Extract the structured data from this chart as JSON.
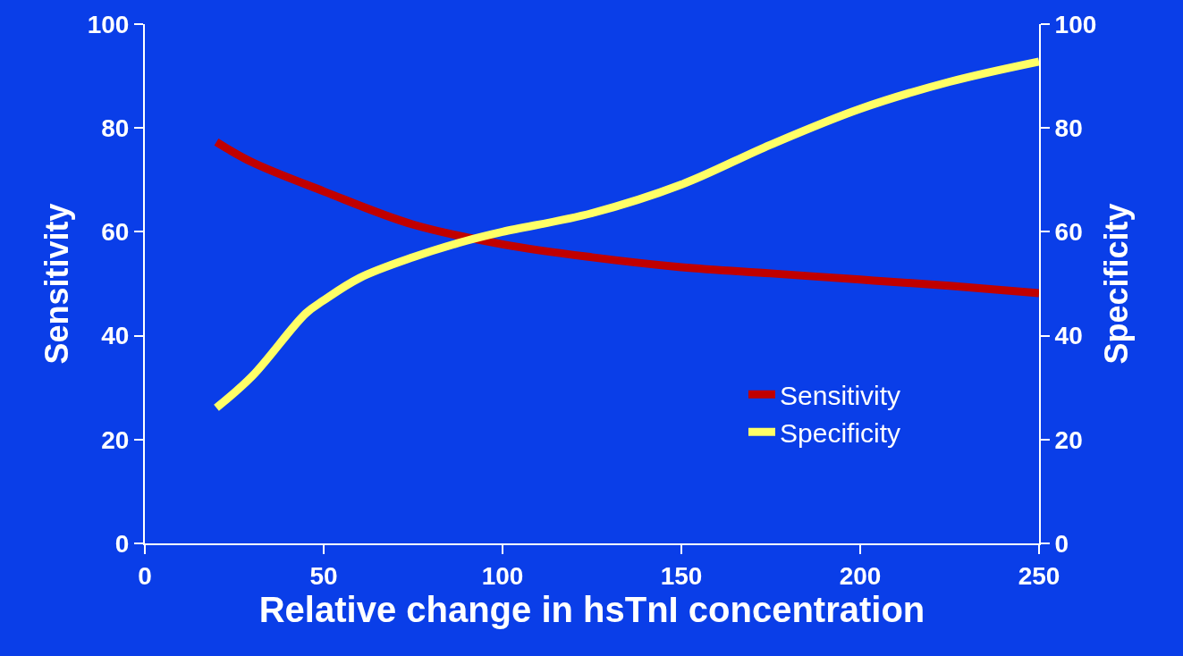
{
  "chart_data": {
    "type": "line",
    "xlabel": "Relative change in hsTnI concentration",
    "ylabel": "Sensitivity",
    "y2label": "Specificity",
    "xlim": [
      0,
      250
    ],
    "xticks": [
      0,
      50,
      100,
      150,
      200,
      250
    ],
    "ylim": [
      0,
      100
    ],
    "yticks": [
      0,
      20,
      40,
      60,
      80,
      100
    ],
    "y2lim": [
      0,
      100
    ],
    "y2ticks": [
      0,
      20,
      40,
      60,
      80,
      100
    ],
    "grid": false,
    "legend": "bottom right",
    "marker": "none",
    "line_style": "solid",
    "series": [
      {
        "name": "Sensitivity",
        "color": "#c00000",
        "x": [
          20,
          30,
          50,
          75,
          100,
          125,
          150,
          175,
          200,
          225,
          250
        ],
        "values": [
          77.3,
          73.4,
          67.8,
          61.4,
          57.6,
          55.1,
          53.2,
          52.0,
          50.8,
          49.6,
          48.2
        ]
      },
      {
        "name": "Specificity",
        "color": "#ffff66",
        "axis": "y2",
        "x": [
          20,
          30,
          45,
          50,
          60,
          75,
          90,
          100,
          125,
          150,
          175,
          200,
          225,
          250
        ],
        "values": [
          26.1,
          32.2,
          44.3,
          46.8,
          51.1,
          55.1,
          58.3,
          60.0,
          63.6,
          69.1,
          76.8,
          83.7,
          88.9,
          92.8
        ]
      }
    ]
  }
}
